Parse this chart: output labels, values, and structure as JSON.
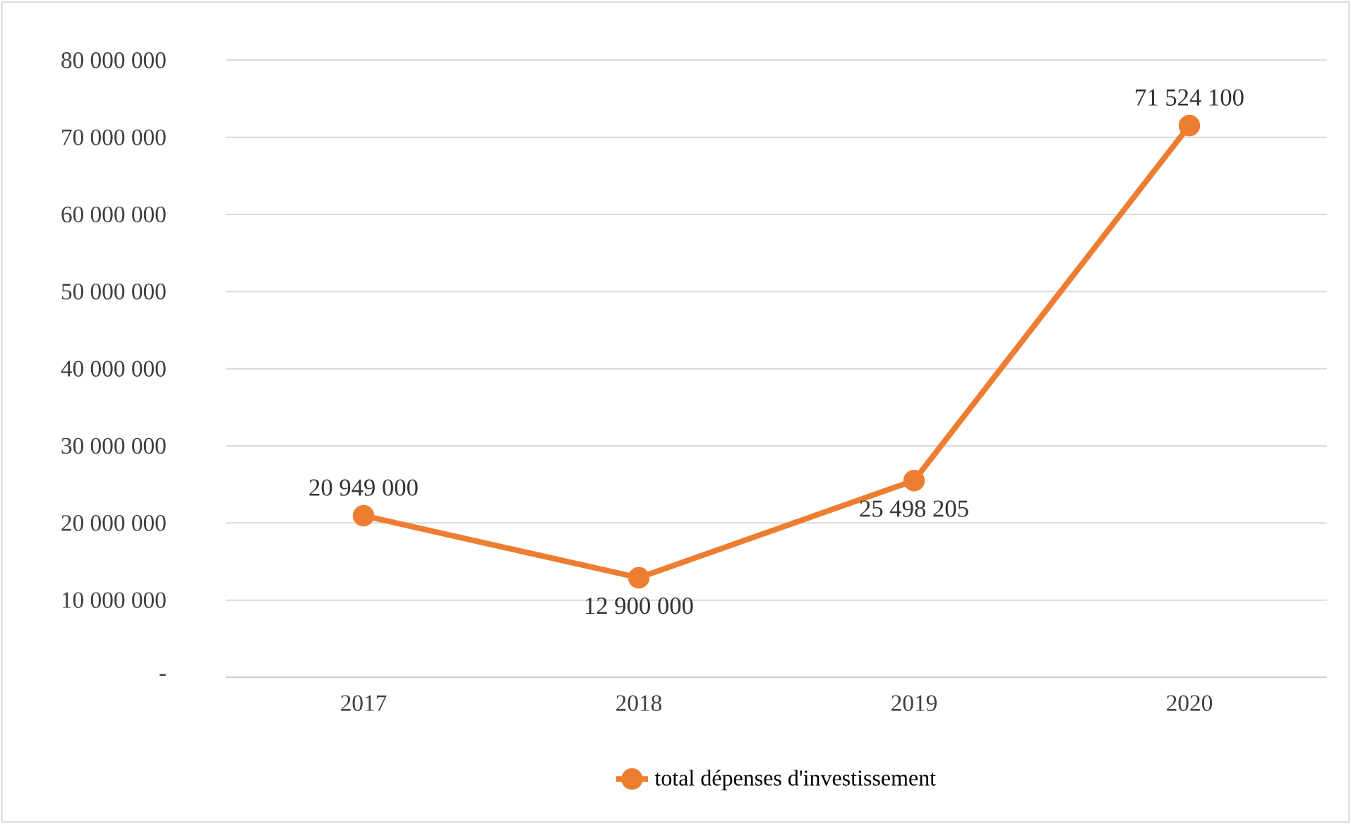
{
  "chart_data": {
    "type": "line",
    "categories": [
      "2017",
      "2018",
      "2019",
      "2020"
    ],
    "series": [
      {
        "name": "total dépenses d'investissement",
        "color": "#ed7d31",
        "values": [
          20949000,
          12900000,
          25498205,
          71524100
        ],
        "value_labels": [
          "20 949 000",
          "12 900 000",
          "25 498 205",
          "71 524 100"
        ]
      }
    ],
    "ylim": [
      0,
      80000000
    ],
    "yticks": [
      {
        "value": 0,
        "label": "-"
      },
      {
        "value": 10000000,
        "label": "10 000 000"
      },
      {
        "value": 20000000,
        "label": "20 000 000"
      },
      {
        "value": 30000000,
        "label": "30 000 000"
      },
      {
        "value": 40000000,
        "label": "40 000 000"
      },
      {
        "value": 50000000,
        "label": "50 000 000"
      },
      {
        "value": 60000000,
        "label": "60 000 000"
      },
      {
        "value": 70000000,
        "label": "70 000 000"
      },
      {
        "value": 80000000,
        "label": "80 000 000"
      }
    ],
    "grid": "y",
    "legend": "bottom",
    "marker": "circle",
    "line_style": "solid"
  }
}
